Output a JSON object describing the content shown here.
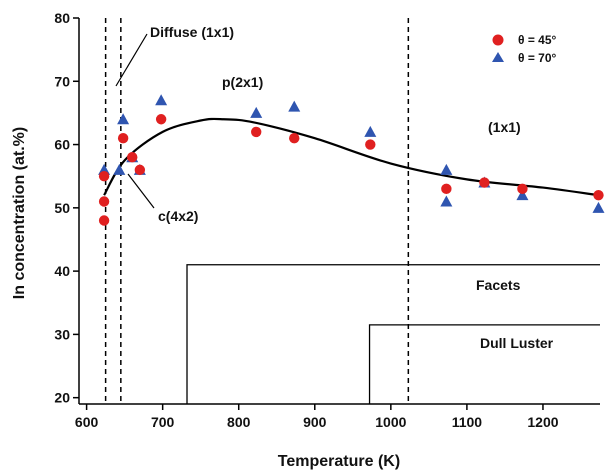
{
  "chart_data": {
    "type": "scatter",
    "xlabel": "Temperature (K)",
    "ylabel": "In concentration (at.%)",
    "xlim": [
      590,
      1275
    ],
    "ylim": [
      19,
      80
    ],
    "x_ticks": [
      600,
      700,
      800,
      900,
      1000,
      1100,
      1200
    ],
    "y_ticks": [
      20,
      30,
      40,
      50,
      60,
      70,
      80
    ],
    "grid": false,
    "legend_position": "top-right",
    "colors": {
      "theta45": "#e02020",
      "theta70": "#2f55b0",
      "line": "#000000"
    },
    "series": [
      {
        "name": "θ = 45°",
        "marker": "circle",
        "points": [
          [
            623,
            48
          ],
          [
            623,
            51
          ],
          [
            623,
            55
          ],
          [
            648,
            61
          ],
          [
            660,
            58
          ],
          [
            670,
            56
          ],
          [
            698,
            64
          ],
          [
            823,
            62
          ],
          [
            873,
            61
          ],
          [
            973,
            60
          ],
          [
            1073,
            53
          ],
          [
            1123,
            54
          ],
          [
            1173,
            53
          ],
          [
            1273,
            52
          ]
        ]
      },
      {
        "name": "θ = 70°",
        "marker": "triangle",
        "points": [
          [
            623,
            56
          ],
          [
            643,
            56
          ],
          [
            648,
            64
          ],
          [
            660,
            58
          ],
          [
            670,
            56
          ],
          [
            698,
            67
          ],
          [
            823,
            65
          ],
          [
            873,
            66
          ],
          [
            973,
            62
          ],
          [
            1073,
            56
          ],
          [
            1073,
            51
          ],
          [
            1123,
            54
          ],
          [
            1173,
            52
          ],
          [
            1273,
            50
          ]
        ]
      }
    ],
    "fit_curve": [
      [
        623,
        52
      ],
      [
        650,
        57.5
      ],
      [
        700,
        62
      ],
      [
        750,
        63.8
      ],
      [
        780,
        64
      ],
      [
        820,
        63.5
      ],
      [
        900,
        61
      ],
      [
        1000,
        57
      ],
      [
        1100,
        54.5
      ],
      [
        1200,
        53.2
      ],
      [
        1273,
        52
      ]
    ],
    "vertical_dashed_lines": [
      625,
      645,
      1023
    ],
    "steps": [
      {
        "label": "Facets",
        "x_start": 732,
        "level": 41
      },
      {
        "label": "Dull Luster",
        "x_start": 972,
        "level": 31.5
      }
    ],
    "annotations": {
      "diffuse": "Diffuse (1x1)",
      "p2x1": "p(2x1)",
      "c4x2": "c(4x2)",
      "one_by_one": "(1x1)"
    }
  }
}
